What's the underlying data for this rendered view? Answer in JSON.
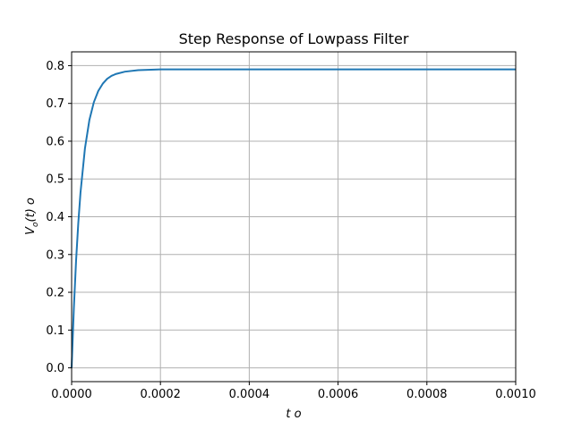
{
  "chart_data": {
    "type": "line",
    "title": "Step Response of Lowpass Filter",
    "xlabel": "t o",
    "ylabel": "V",
    "ylabel_sub": "o",
    "ylabel_rest": "(t) o",
    "xlim": [
      0,
      0.001
    ],
    "ylim": [
      -0.0365,
      0.8365
    ],
    "x_ticks": [
      0,
      0.0002,
      0.0004,
      0.0006,
      0.0008,
      0.001
    ],
    "x_tick_labels": [
      "0.0000",
      "0.0002",
      "0.0004",
      "0.0006",
      "0.0008",
      "0.0010"
    ],
    "y_ticks": [
      0,
      0.1,
      0.2,
      0.3,
      0.4,
      0.5,
      0.6,
      0.7,
      0.8
    ],
    "y_tick_labels": [
      "0.0",
      "0.1",
      "0.2",
      "0.3",
      "0.4",
      "0.5",
      "0.6",
      "0.7",
      "0.8"
    ],
    "grid": true,
    "series": [
      {
        "color": "#1f77b4",
        "x": [
          0,
          5e-06,
          1e-05,
          1.5e-05,
          2e-05,
          3e-05,
          4e-05,
          5e-05,
          6e-05,
          7e-05,
          8e-05,
          9e-05,
          0.0001,
          0.00012,
          0.00015,
          0.0002,
          0.0003,
          0.0004,
          0.0005,
          0.0006,
          0.0007,
          0.0008,
          0.0009,
          0.001
        ],
        "y": [
          0,
          0.157,
          0.283,
          0.383,
          0.464,
          0.581,
          0.656,
          0.703,
          0.733,
          0.752,
          0.765,
          0.773,
          0.778,
          0.784,
          0.788,
          0.79,
          0.79,
          0.79,
          0.79,
          0.79,
          0.79,
          0.79,
          0.79,
          0.79
        ]
      }
    ]
  }
}
